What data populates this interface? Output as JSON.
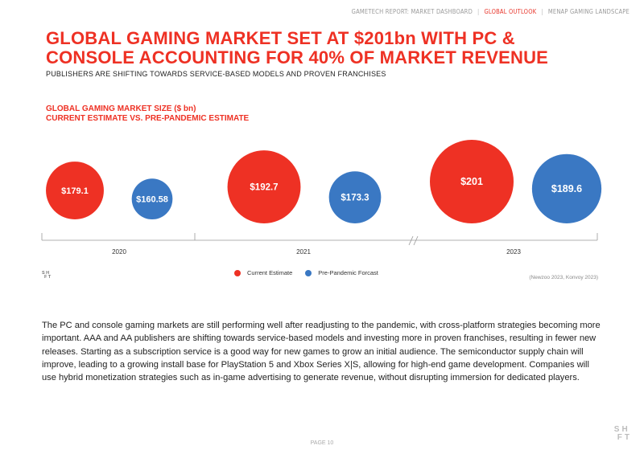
{
  "nav": {
    "items": [
      "GAMETECH REPORT: MARKET DASHBOARD",
      "GLOBAL OUTLOOK",
      "MENAP GAMING LANDSCAPE"
    ],
    "separator": "|",
    "active_color": "#e8352b"
  },
  "title": "GLOBAL GAMING MARKET SET AT $201bn WITH PC & CONSOLE ACCOUNTING FOR 40% OF MARKET REVENUE",
  "subtitle": "PUBLISHERS ARE SHIFTING TOWARDS SERVICE-BASED MODELS AND PROVEN FRANCHISES",
  "chart_title_line1": "GLOBAL GAMING MARKET SIZE ($ bn)",
  "chart_title_line2": "CURRENT ESTIMATE VS. PRE-PANDEMIC ESTIMATE",
  "chart_data": {
    "type": "bubble",
    "title": "GLOBAL GAMING MARKET SIZE ($ bn) — CURRENT ESTIMATE VS. PRE-PANDEMIC ESTIMATE",
    "categories": [
      "2020",
      "2021",
      "2023"
    ],
    "series": [
      {
        "name": "Current Estimate",
        "color": "#ee3124",
        "values": [
          179.1,
          192.7,
          201
        ],
        "labels": [
          "$179.1",
          "$192.7",
          "$201"
        ]
      },
      {
        "name": "Pre-Pandemic Forcast",
        "color": "#3a78c3",
        "values": [
          160.58,
          173.3,
          189.6
        ],
        "labels": [
          "$160.58",
          "$173.3",
          "$189.6"
        ]
      }
    ],
    "axis_break_between": [
      "2021",
      "2023"
    ]
  },
  "legend": [
    {
      "label": "Current Estimate",
      "color": "#ee3124"
    },
    {
      "label": "Pre-Pandemic Forcast",
      "color": "#3a78c3"
    }
  ],
  "source": "(Newzoo 2023, Konvoy 2023)",
  "logo_text": [
    "SH",
    "FT"
  ],
  "body": "The PC and console gaming markets are still performing well after readjusting to the pandemic, with cross-platform strategies becoming more important. AAA and AA publishers are shifting towards service-based models and investing more in proven franchises, resulting in fewer new releases. Starting as a subscription service is a good way for new games to grow an initial audience. The semiconductor supply chain will improve, leading to a growing install base for PlayStation 5 and Xbox Series X|S, allowing for high-end game development. Companies will use hybrid monetization strategies such as in-game advertising to generate revenue, without disrupting immersion for dedicated players.",
  "page_label": "PAGE 10"
}
